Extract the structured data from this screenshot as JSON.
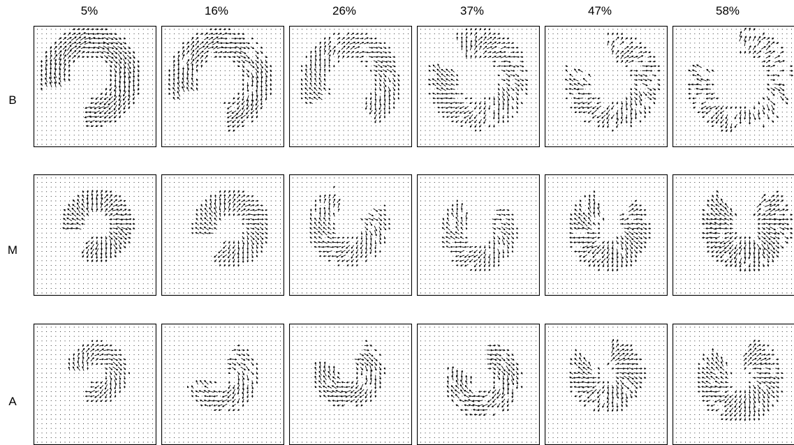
{
  "columns": [
    "5%",
    "16%",
    "26%",
    "37%",
    "47%",
    "58%"
  ],
  "rows": [
    "B",
    "M",
    "A"
  ],
  "colors": {
    "grid_dot": "#000000",
    "arrow": "#000000",
    "frame": "#000000",
    "background": "#ffffff"
  }
}
